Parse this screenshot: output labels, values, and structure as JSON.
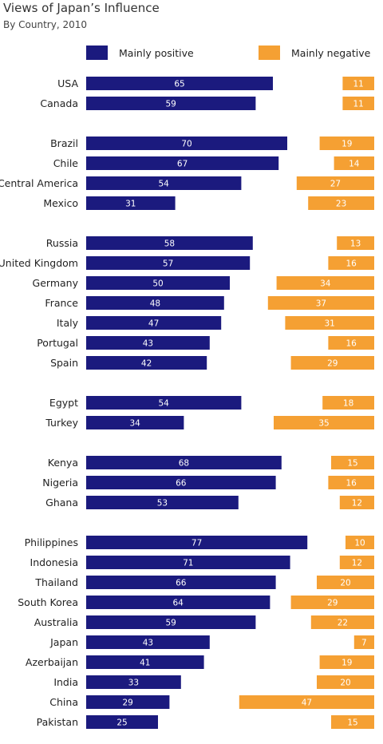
{
  "chart_data": {
    "type": "bar",
    "title": "Views of Japan’s Influence",
    "subtitle": "By Country, 2010",
    "legend": {
      "placement": "top",
      "entries": [
        "Mainly positive",
        "Mainly negative"
      ]
    },
    "colors": {
      "positive": "#1b1a7e",
      "negative": "#f5a033"
    },
    "groups": [
      {
        "categories": [
          "USA",
          "Canada"
        ],
        "positive": [
          65,
          59
        ],
        "negative": [
          11,
          11
        ]
      },
      {
        "categories": [
          "Brazil",
          "Chile",
          "Central America",
          "Mexico"
        ],
        "positive": [
          70,
          67,
          54,
          31
        ],
        "negative": [
          19,
          14,
          27,
          23
        ]
      },
      {
        "categories": [
          "Russia",
          "United Kingdom",
          "Germany",
          "France",
          "Italy",
          "Portugal",
          "Spain"
        ],
        "positive": [
          58,
          57,
          50,
          48,
          47,
          43,
          42
        ],
        "negative": [
          13,
          16,
          34,
          37,
          31,
          16,
          29
        ]
      },
      {
        "categories": [
          "Egypt",
          "Turkey"
        ],
        "positive": [
          54,
          34
        ],
        "negative": [
          18,
          35
        ]
      },
      {
        "categories": [
          "Kenya",
          "Nigeria",
          "Ghana"
        ],
        "positive": [
          68,
          66,
          53
        ],
        "negative": [
          15,
          16,
          12
        ]
      },
      {
        "categories": [
          "Philippines",
          "Indonesia",
          "Thailand",
          "South Korea",
          "Australia",
          "Japan",
          "Azerbaijan",
          "India",
          "China",
          "Pakistan"
        ],
        "positive": [
          77,
          71,
          66,
          64,
          59,
          43,
          41,
          33,
          29,
          25
        ],
        "negative": [
          10,
          12,
          20,
          29,
          22,
          7,
          19,
          20,
          47,
          15
        ]
      }
    ]
  }
}
